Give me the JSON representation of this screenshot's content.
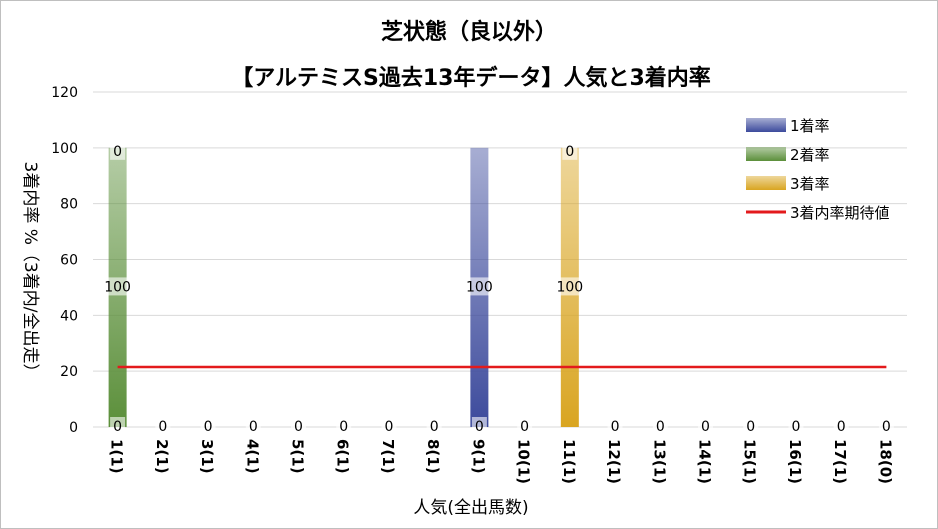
{
  "chart_data": {
    "type": "bar",
    "title": "芝状態（良以外）",
    "subtitle": "【アルテミスS過去13年データ】人気と3着内率",
    "xlabel": "人気(全出馬数)",
    "ylabel": "3着内率 %（3着内/全出走）",
    "ylim": [
      0,
      120
    ],
    "yticks": [
      0,
      20,
      40,
      60,
      80,
      100,
      120
    ],
    "grid": true,
    "legend_position": "right",
    "categories": [
      "1(1)",
      "2(1)",
      "3(1)",
      "4(1)",
      "5(1)",
      "6(1)",
      "7(1)",
      "8(1)",
      "9(1)",
      "10(1)",
      "11(1)",
      "12(1)",
      "13(1)",
      "14(1)",
      "15(1)",
      "16(1)",
      "17(1)",
      "18(0)"
    ],
    "series": [
      {
        "name": "1着率",
        "values": [
          0,
          0,
          0,
          0,
          0,
          0,
          0,
          0,
          100,
          0,
          0,
          0,
          0,
          0,
          0,
          0,
          0,
          0
        ],
        "color": "#3c4a9c"
      },
      {
        "name": "2着率",
        "values": [
          100,
          0,
          0,
          0,
          0,
          0,
          0,
          0,
          0,
          0,
          0,
          0,
          0,
          0,
          0,
          0,
          0,
          0
        ],
        "color": "#5b8f3a"
      },
      {
        "name": "3着率",
        "values": [
          0,
          0,
          0,
          0,
          0,
          0,
          0,
          0,
          0,
          0,
          100,
          0,
          0,
          0,
          0,
          0,
          0,
          0
        ],
        "color": "#d9a521"
      }
    ],
    "reference_line": {
      "name": "3着内率期待値",
      "value": 21.5,
      "color": "#e31a1c"
    },
    "data_labels": {
      "bottom": [
        "0",
        "0",
        "0",
        "0",
        "0",
        "0",
        "0",
        "0",
        "0",
        "0",
        "",
        "0",
        "0",
        "0",
        "0",
        "0",
        "0",
        "0"
      ],
      "middle": [
        {
          "index": 0,
          "text": "100"
        },
        {
          "index": 8,
          "text": "100"
        },
        {
          "index": 10,
          "text": "100"
        }
      ],
      "top": [
        {
          "index": 0,
          "text": "0"
        },
        {
          "index": 10,
          "text": "0"
        }
      ]
    }
  }
}
